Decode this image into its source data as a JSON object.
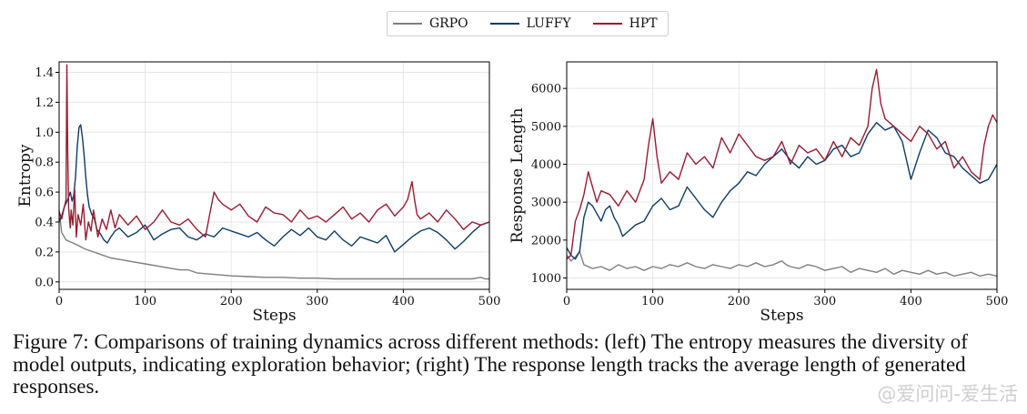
{
  "legend": [
    {
      "name": "GRPO",
      "color": "#7f7f7f"
    },
    {
      "name": "LUFFY",
      "color": "#0c3c6b"
    },
    {
      "name": "HPT",
      "color": "#9b1b30"
    }
  ],
  "caption": "Figure 7: Comparisons of training dynamics across different methods: (left) The entropy measures the diversity of model outputs, indicating exploration behavior; (right) The response length tracks the average length of generated responses.",
  "watermark": "@爱问问-爱生活",
  "chart_data": [
    {
      "type": "line",
      "xlabel": "Steps",
      "ylabel": "Entropy",
      "xlim": [
        0,
        500
      ],
      "ylim": [
        -0.05,
        1.47
      ],
      "xticks": [
        0,
        100,
        200,
        300,
        400,
        500
      ],
      "yticks": [
        0.0,
        0.2,
        0.4,
        0.6,
        0.8,
        1.0,
        1.2,
        1.4
      ],
      "ytick_labels": [
        "0.0",
        "0.2",
        "0.4",
        "0.6",
        "0.8",
        "1.0",
        "1.2",
        "1.4"
      ],
      "grid": true,
      "series": [
        {
          "name": "GRPO",
          "color": "#7f7f7f",
          "x": [
            0,
            3,
            8,
            12,
            20,
            30,
            40,
            50,
            60,
            70,
            80,
            100,
            120,
            140,
            150,
            160,
            180,
            200,
            220,
            240,
            260,
            280,
            300,
            320,
            340,
            360,
            380,
            400,
            420,
            440,
            460,
            480,
            490,
            495,
            500
          ],
          "y": [
            0.48,
            0.33,
            0.28,
            0.27,
            0.25,
            0.22,
            0.2,
            0.18,
            0.16,
            0.15,
            0.14,
            0.12,
            0.1,
            0.08,
            0.08,
            0.06,
            0.05,
            0.04,
            0.035,
            0.03,
            0.03,
            0.025,
            0.025,
            0.02,
            0.02,
            0.02,
            0.02,
            0.02,
            0.02,
            0.02,
            0.02,
            0.02,
            0.03,
            0.02,
            0.02
          ]
        },
        {
          "name": "LUFFY",
          "color": "#0c3c6b",
          "x": [
            0,
            3,
            6,
            10,
            13,
            15,
            17,
            19,
            21,
            23,
            25,
            27,
            29,
            31,
            33,
            35,
            38,
            41,
            44,
            48,
            52,
            56,
            60,
            65,
            70,
            80,
            90,
            100,
            110,
            120,
            130,
            140,
            150,
            160,
            170,
            180,
            190,
            200,
            210,
            220,
            230,
            240,
            250,
            260,
            270,
            280,
            290,
            300,
            310,
            320,
            330,
            340,
            350,
            360,
            370,
            380,
            390,
            400,
            410,
            420,
            430,
            440,
            450,
            460,
            470,
            480,
            490,
            500
          ],
          "y": [
            0.4,
            0.44,
            0.5,
            0.55,
            0.6,
            0.54,
            0.58,
            0.7,
            0.9,
            1.03,
            1.05,
            0.97,
            0.85,
            0.7,
            0.58,
            0.5,
            0.45,
            0.42,
            0.35,
            0.32,
            0.28,
            0.26,
            0.3,
            0.34,
            0.36,
            0.3,
            0.33,
            0.38,
            0.28,
            0.32,
            0.35,
            0.36,
            0.3,
            0.28,
            0.32,
            0.3,
            0.36,
            0.34,
            0.32,
            0.3,
            0.33,
            0.28,
            0.24,
            0.3,
            0.35,
            0.31,
            0.36,
            0.3,
            0.28,
            0.34,
            0.28,
            0.24,
            0.3,
            0.28,
            0.26,
            0.31,
            0.2,
            0.25,
            0.3,
            0.34,
            0.36,
            0.33,
            0.28,
            0.22,
            0.27,
            0.33,
            0.38,
            0.4
          ]
        },
        {
          "name": "HPT",
          "color": "#9b1b30",
          "x": [
            0,
            3,
            6,
            8,
            9,
            10,
            11,
            12,
            13,
            14,
            16,
            18,
            20,
            22,
            25,
            28,
            31,
            34,
            37,
            40,
            45,
            50,
            55,
            60,
            65,
            70,
            80,
            90,
            100,
            110,
            120,
            130,
            140,
            150,
            160,
            170,
            175,
            180,
            185,
            190,
            200,
            210,
            220,
            230,
            240,
            250,
            260,
            270,
            280,
            290,
            300,
            310,
            320,
            330,
            340,
            350,
            360,
            370,
            380,
            390,
            400,
            405,
            410,
            413,
            416,
            420,
            430,
            440,
            450,
            460,
            470,
            480,
            490,
            500
          ],
          "y": [
            0.47,
            0.42,
            0.5,
            0.55,
            1.45,
            0.85,
            0.5,
            0.42,
            0.36,
            0.48,
            0.38,
            0.62,
            0.3,
            0.45,
            0.38,
            0.52,
            0.28,
            0.4,
            0.34,
            0.48,
            0.3,
            0.42,
            0.35,
            0.48,
            0.36,
            0.45,
            0.38,
            0.44,
            0.35,
            0.4,
            0.48,
            0.4,
            0.38,
            0.42,
            0.35,
            0.3,
            0.45,
            0.6,
            0.55,
            0.52,
            0.48,
            0.52,
            0.44,
            0.4,
            0.5,
            0.46,
            0.45,
            0.4,
            0.48,
            0.42,
            0.44,
            0.4,
            0.45,
            0.5,
            0.42,
            0.46,
            0.4,
            0.48,
            0.52,
            0.44,
            0.5,
            0.55,
            0.67,
            0.55,
            0.45,
            0.42,
            0.46,
            0.4,
            0.48,
            0.42,
            0.35,
            0.4,
            0.38,
            0.4
          ]
        }
      ]
    },
    {
      "type": "line",
      "xlabel": "Steps",
      "ylabel": "Response Length",
      "xlim": [
        0,
        500
      ],
      "ylim": [
        700,
        6700
      ],
      "xticks": [
        0,
        100,
        200,
        300,
        400,
        500
      ],
      "yticks": [
        1000,
        2000,
        3000,
        4000,
        5000,
        6000
      ],
      "ytick_labels": [
        "1000",
        "2000",
        "3000",
        "4000",
        "5000",
        "6000"
      ],
      "grid": true,
      "series": [
        {
          "name": "GRPO",
          "color": "#7f7f7f",
          "x": [
            0,
            5,
            10,
            15,
            20,
            30,
            40,
            50,
            60,
            70,
            80,
            90,
            100,
            110,
            120,
            130,
            140,
            150,
            160,
            170,
            180,
            190,
            200,
            210,
            220,
            230,
            240,
            250,
            255,
            260,
            270,
            280,
            290,
            300,
            310,
            320,
            330,
            340,
            350,
            360,
            370,
            380,
            390,
            400,
            410,
            420,
            430,
            440,
            450,
            460,
            470,
            480,
            490,
            500
          ],
          "y": [
            1600,
            1450,
            1550,
            1700,
            1350,
            1250,
            1300,
            1200,
            1350,
            1250,
            1300,
            1200,
            1300,
            1250,
            1350,
            1300,
            1400,
            1300,
            1250,
            1350,
            1300,
            1250,
            1350,
            1300,
            1400,
            1300,
            1350,
            1450,
            1350,
            1300,
            1250,
            1350,
            1300,
            1200,
            1250,
            1300,
            1150,
            1250,
            1200,
            1150,
            1250,
            1100,
            1200,
            1150,
            1100,
            1200,
            1100,
            1150,
            1050,
            1100,
            1150,
            1050,
            1100,
            1050
          ]
        },
        {
          "name": "LUFFY",
          "color": "#0c3c6b",
          "x": [
            0,
            5,
            10,
            15,
            20,
            25,
            30,
            35,
            40,
            45,
            50,
            55,
            60,
            65,
            70,
            80,
            90,
            100,
            110,
            120,
            130,
            140,
            150,
            160,
            170,
            180,
            190,
            200,
            210,
            220,
            230,
            240,
            250,
            260,
            270,
            280,
            290,
            300,
            310,
            320,
            330,
            340,
            350,
            360,
            370,
            380,
            390,
            400,
            410,
            420,
            430,
            440,
            450,
            460,
            470,
            480,
            490,
            500
          ],
          "y": [
            1800,
            1600,
            1500,
            1700,
            2600,
            3000,
            2900,
            2700,
            2500,
            2800,
            2900,
            2600,
            2400,
            2100,
            2200,
            2400,
            2500,
            2900,
            3100,
            2800,
            2900,
            3400,
            3100,
            2800,
            2600,
            3000,
            3300,
            3500,
            3800,
            3700,
            4000,
            4200,
            4400,
            4100,
            3900,
            4200,
            4000,
            4100,
            4400,
            4500,
            4200,
            4300,
            4800,
            5100,
            4900,
            5000,
            4600,
            3600,
            4300,
            4900,
            4700,
            4300,
            4200,
            3900,
            3700,
            3500,
            3600,
            4000
          ]
        },
        {
          "name": "HPT",
          "color": "#9b1b30",
          "x": [
            0,
            5,
            10,
            15,
            20,
            25,
            30,
            35,
            40,
            50,
            60,
            70,
            80,
            90,
            95,
            100,
            105,
            110,
            120,
            130,
            140,
            150,
            160,
            170,
            180,
            190,
            200,
            210,
            220,
            230,
            240,
            250,
            260,
            270,
            280,
            290,
            300,
            310,
            320,
            330,
            340,
            350,
            355,
            360,
            365,
            370,
            380,
            390,
            400,
            410,
            420,
            430,
            440,
            450,
            460,
            470,
            480,
            485,
            490,
            495,
            500
          ],
          "y": [
            1500,
            1600,
            2500,
            2800,
            3200,
            3800,
            3400,
            3000,
            3300,
            3200,
            2900,
            3300,
            3000,
            3600,
            4500,
            5200,
            4200,
            3500,
            3800,
            3600,
            4300,
            4000,
            4200,
            3900,
            4700,
            4300,
            4800,
            4500,
            4200,
            4100,
            4200,
            4600,
            4000,
            4500,
            4300,
            4400,
            4100,
            4600,
            4200,
            4700,
            4500,
            5000,
            6000,
            6500,
            5600,
            5200,
            5000,
            4800,
            4600,
            5000,
            4800,
            4400,
            4600,
            3900,
            4200,
            3800,
            3600,
            4500,
            5000,
            5300,
            5100
          ]
        }
      ]
    }
  ]
}
